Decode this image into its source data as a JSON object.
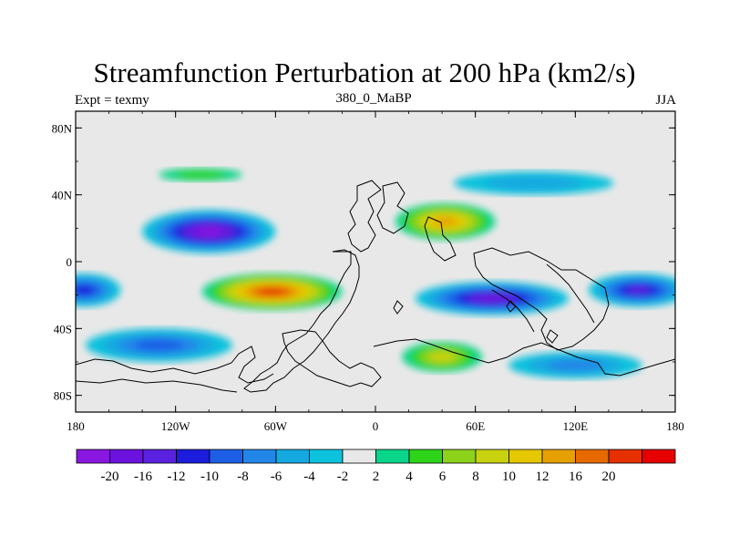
{
  "chart_data": {
    "type": "heatmap",
    "title": "Streamfunction Perturbation at 200 hPa (km2/s)",
    "left_label": "Expt = texmy",
    "center_label": "380_0_MaBP",
    "right_label": "JJA",
    "x_ticks": [
      {
        "value": -180,
        "label": "180"
      },
      {
        "value": -120,
        "label": "120W"
      },
      {
        "value": -60,
        "label": "60W"
      },
      {
        "value": 0,
        "label": "0"
      },
      {
        "value": 60,
        "label": "60E"
      },
      {
        "value": 120,
        "label": "120E"
      },
      {
        "value": 180,
        "label": "180"
      }
    ],
    "y_ticks": [
      {
        "value": 80,
        "label": "80N"
      },
      {
        "value": 40,
        "label": "40N"
      },
      {
        "value": 0,
        "label": "0"
      },
      {
        "value": -40,
        "label": "40S"
      },
      {
        "value": -80,
        "label": "80S"
      }
    ],
    "xlim": [
      -180,
      180
    ],
    "ylim": [
      -90,
      90
    ],
    "colorbar": {
      "colors": [
        "#8a17e0",
        "#6c12de",
        "#5a21e0",
        "#1c1cdc",
        "#1c5fe6",
        "#2286e8",
        "#14a9e0",
        "#0cc2dd",
        "#e8e8e8",
        "#0ad58a",
        "#2ed41a",
        "#8cd21a",
        "#c8d20e",
        "#e6c800",
        "#e6a000",
        "#e66a00",
        "#e63000",
        "#e60000"
      ],
      "labels": [
        "-20",
        "-16",
        "-12",
        "-10",
        "-8",
        "-6",
        "-4",
        "-2",
        "2",
        "4",
        "6",
        "8",
        "10",
        "12",
        "16",
        "20"
      ]
    },
    "features": [
      {
        "name": "South-American-high",
        "lon": -62,
        "lat": -18,
        "rx": 42,
        "ry": 11,
        "value": 22
      },
      {
        "name": "Tethys-high",
        "lon": 42,
        "lat": 24,
        "rx": 30,
        "ry": 11,
        "value": 15
      },
      {
        "name": "South-Africa-high",
        "lon": 40,
        "lat": -57,
        "rx": 24,
        "ry": 9,
        "value": 8
      },
      {
        "name": "North-Pacific-low",
        "lon": -100,
        "lat": 18,
        "rx": 40,
        "ry": 13,
        "value": -20
      },
      {
        "name": "Indian-Ocean-low",
        "lon": 70,
        "lat": -22,
        "rx": 46,
        "ry": 10,
        "value": -19
      },
      {
        "name": "West-Pacific-low",
        "lon": 158,
        "lat": -17,
        "rx": 30,
        "ry": 10,
        "value": -12
      },
      {
        "name": "East-Pacific-low",
        "lon": -175,
        "lat": -17,
        "rx": 22,
        "ry": 10,
        "value": -10
      },
      {
        "name": "South-Pacific-low",
        "lon": -130,
        "lat": -50,
        "rx": 44,
        "ry": 10,
        "value": -8
      },
      {
        "name": "Southern-Ocean-low",
        "lon": 120,
        "lat": -62,
        "rx": 40,
        "ry": 8,
        "value": -6
      },
      {
        "name": "North-Atlantic-low",
        "lon": 95,
        "lat": 47,
        "rx": 48,
        "ry": 7,
        "value": -5
      },
      {
        "name": "Arctic-high",
        "lon": -105,
        "lat": 52,
        "rx": 25,
        "ry": 4,
        "value": 4
      }
    ]
  }
}
